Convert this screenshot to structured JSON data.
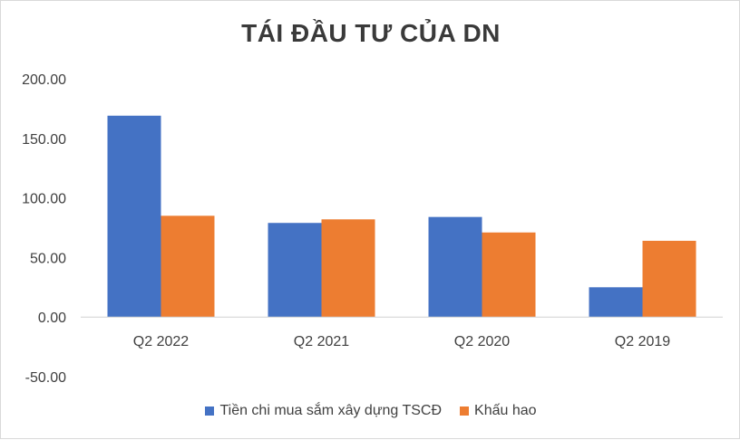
{
  "chart_data": {
    "type": "bar",
    "title": "TÁI ĐẦU TƯ CỦA DN",
    "categories": [
      "Q2 2022",
      "Q2 2021",
      "Q2 2020",
      "Q2 2019"
    ],
    "series": [
      {
        "name": "Tiền chi mua sắm xây dựng TSCĐ",
        "color": "#4472c4",
        "values": [
          169,
          79,
          84,
          25
        ]
      },
      {
        "name": "Khấu hao",
        "color": "#ed7d31",
        "values": [
          85,
          82,
          71,
          64
        ]
      }
    ],
    "yticks": [
      "200.00",
      "150.00",
      "100.00",
      "50.00",
      "0.00",
      "-50.00"
    ],
    "ylim": [
      -50,
      200
    ],
    "grid": false,
    "legend_position": "bottom"
  }
}
